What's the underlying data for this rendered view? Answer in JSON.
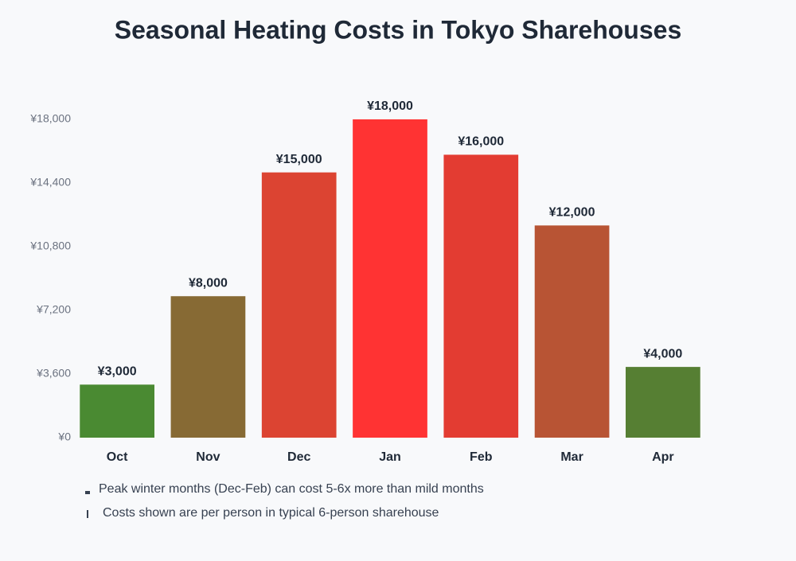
{
  "chart_data": {
    "type": "bar",
    "title": "Seasonal Heating Costs in Tokyo Sharehouses",
    "categories": [
      "Oct",
      "Nov",
      "Dec",
      "Jan",
      "Feb",
      "Mar",
      "Apr"
    ],
    "values": [
      3000,
      8000,
      15000,
      18000,
      16000,
      12000,
      4000
    ],
    "value_labels": [
      "¥3,000",
      "¥8,000",
      "¥15,000",
      "¥18,000",
      "¥16,000",
      "¥12,000",
      "¥4,000"
    ],
    "colors": [
      "#4a8a32",
      "#876a34",
      "#dc4432",
      "#ff3333",
      "#e33c32",
      "#b85434",
      "#567f33"
    ],
    "ylim": [
      0,
      18000
    ],
    "yticks": [
      {
        "value": 0,
        "label": "¥0"
      },
      {
        "value": 3600,
        "label": "¥3,600"
      },
      {
        "value": 7200,
        "label": "¥7,200"
      },
      {
        "value": 10800,
        "label": "¥10,800"
      },
      {
        "value": 14400,
        "label": "¥14,400"
      },
      {
        "value": 18000,
        "label": "¥18,000"
      }
    ],
    "grid": false,
    "notes": [
      "Peak winter months (Dec-Feb) can cost 5-6x more than mild months",
      "Costs shown are per person in typical 6-person sharehouse"
    ]
  }
}
